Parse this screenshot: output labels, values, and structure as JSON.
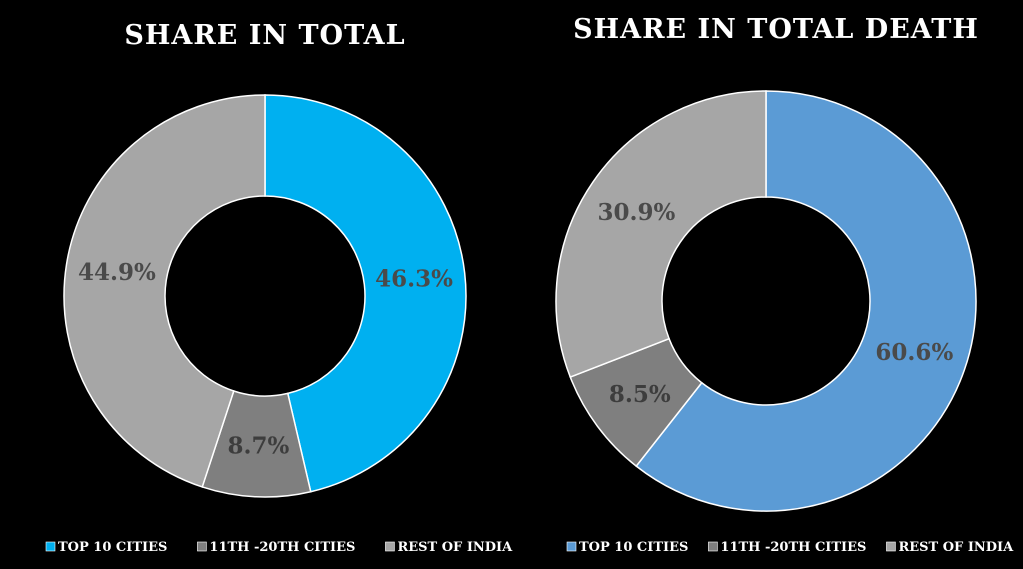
{
  "chart_data": [
    {
      "type": "pie",
      "title": "SHARE IN TOTAL",
      "series": [
        {
          "name": "TOP 10 CITIES",
          "value": 46.3,
          "label": "46.3%",
          "color": "#00b0f0",
          "text_color": "#4a4a4a"
        },
        {
          "name": "11TH -20TH CITIES",
          "value": 8.7,
          "label": "8.7%",
          "color": "#7f7f7f",
          "text_color": "#3d3d3d"
        },
        {
          "name": "REST OF INDIA",
          "value": 44.9,
          "label": "44.9%",
          "color": "#a6a6a6",
          "text_color": "#4a4a4a"
        }
      ],
      "legend": "bottom"
    },
    {
      "type": "pie",
      "title": "SHARE IN TOTAL DEATH",
      "series": [
        {
          "name": "TOP 10 CITIES",
          "value": 60.6,
          "label": "60.6%",
          "color": "#5b9bd5",
          "text_color": "#4a4a4a"
        },
        {
          "name": "11TH -20TH CITIES",
          "value": 8.5,
          "label": "8.5%",
          "color": "#7f7f7f",
          "text_color": "#3d3d3d"
        },
        {
          "name": "REST OF INDIA",
          "value": 30.9,
          "label": "30.9%",
          "color": "#a6a6a6",
          "text_color": "#4a4a4a"
        }
      ],
      "legend": "bottom"
    }
  ]
}
